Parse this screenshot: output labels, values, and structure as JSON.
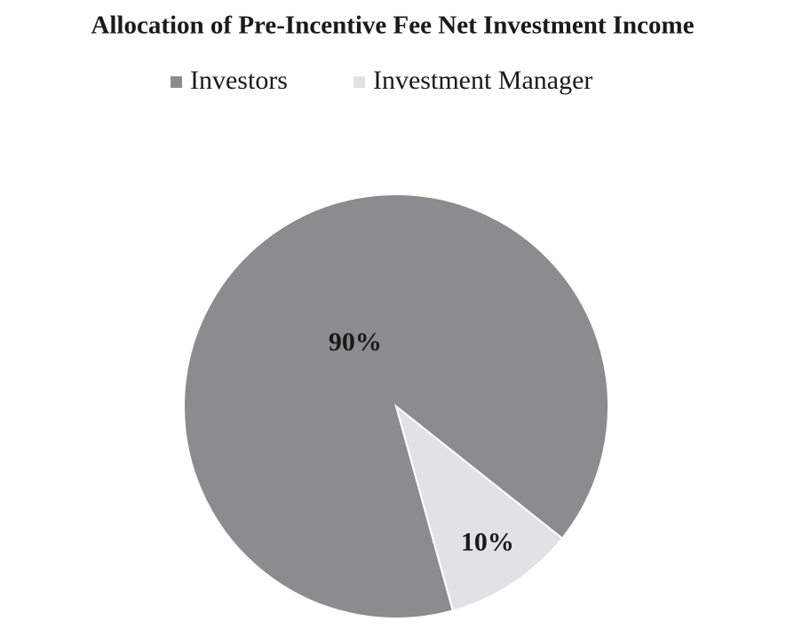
{
  "chart_data": {
    "type": "pie",
    "title": "Allocation of Pre-Incentive Fee Net Investment Income",
    "categories": [
      "Investors",
      "Investment Manager"
    ],
    "values": [
      90,
      10
    ],
    "value_labels": [
      "90%",
      "10%"
    ],
    "colors": [
      "#8c8c8e",
      "#e2e2e4"
    ],
    "legend": "top"
  }
}
